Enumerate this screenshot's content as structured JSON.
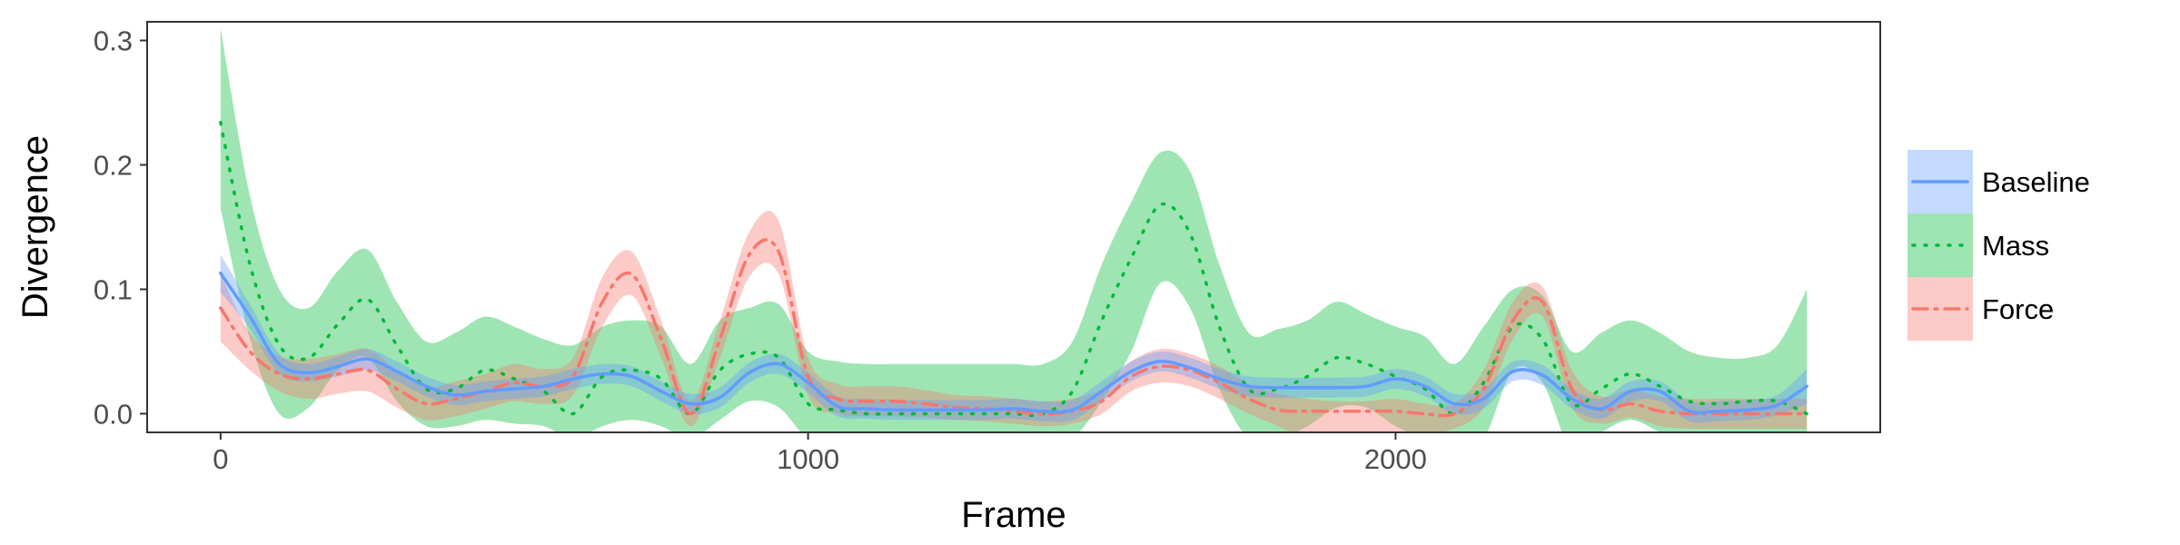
{
  "chart_data": {
    "type": "line",
    "title": "",
    "xlabel": "Frame",
    "ylabel": "Divergence",
    "xlim": [
      -125,
      2825
    ],
    "ylim": [
      -0.015,
      0.315
    ],
    "xticks": [
      0,
      1000,
      2000
    ],
    "xtick_labels": [
      "0",
      "1000",
      "2000"
    ],
    "yticks": [
      0,
      0.1,
      0.2,
      0.3
    ],
    "ytick_labels": [
      "0.0",
      "0.1",
      "0.2",
      "0.3"
    ],
    "grid": false,
    "legend_position": "right",
    "series": [
      {
        "name": "Baseline",
        "color": "#619cff",
        "linestyle": "solid",
        "x": [
          0,
          50,
          100,
          150,
          200,
          250,
          300,
          350,
          400,
          450,
          500,
          550,
          600,
          650,
          700,
          750,
          800,
          850,
          900,
          950,
          1000,
          1050,
          1100,
          1150,
          1200,
          1250,
          1300,
          1350,
          1400,
          1450,
          1500,
          1550,
          1600,
          1650,
          1700,
          1750,
          1800,
          1850,
          1900,
          1950,
          2000,
          2050,
          2100,
          2150,
          2200,
          2250,
          2300,
          2350,
          2400,
          2450,
          2500,
          2550,
          2600,
          2650,
          2700
        ],
        "y": [
          0.113,
          0.078,
          0.04,
          0.033,
          0.038,
          0.044,
          0.034,
          0.022,
          0.015,
          0.018,
          0.02,
          0.022,
          0.028,
          0.032,
          0.03,
          0.018,
          0.008,
          0.013,
          0.033,
          0.04,
          0.025,
          0.006,
          0.004,
          0.003,
          0.003,
          0.003,
          0.003,
          0.004,
          0.002,
          0.003,
          0.018,
          0.034,
          0.042,
          0.037,
          0.028,
          0.022,
          0.021,
          0.021,
          0.021,
          0.022,
          0.028,
          0.022,
          0.008,
          0.012,
          0.034,
          0.031,
          0.012,
          0.004,
          0.018,
          0.018,
          0.002,
          0.002,
          0.003,
          0.007,
          0.022
        ],
        "lower": [
          0.098,
          0.068,
          0.032,
          0.026,
          0.03,
          0.035,
          0.026,
          0.014,
          0.007,
          0.01,
          0.012,
          0.014,
          0.02,
          0.024,
          0.022,
          0.01,
          0.0,
          0.005,
          0.025,
          0.032,
          0.017,
          -0.002,
          -0.004,
          -0.005,
          -0.005,
          -0.005,
          -0.005,
          -0.004,
          -0.006,
          -0.005,
          0.01,
          0.026,
          0.034,
          0.029,
          0.02,
          0.014,
          0.013,
          0.013,
          0.013,
          0.014,
          0.02,
          0.014,
          0.0,
          0.004,
          0.026,
          0.023,
          0.004,
          -0.004,
          0.01,
          0.01,
          -0.006,
          -0.006,
          -0.005,
          -0.001,
          0.008
        ],
        "upper": [
          0.128,
          0.088,
          0.048,
          0.04,
          0.046,
          0.052,
          0.042,
          0.03,
          0.023,
          0.026,
          0.028,
          0.03,
          0.036,
          0.04,
          0.038,
          0.026,
          0.016,
          0.021,
          0.041,
          0.048,
          0.033,
          0.014,
          0.012,
          0.011,
          0.011,
          0.011,
          0.011,
          0.012,
          0.01,
          0.011,
          0.026,
          0.042,
          0.05,
          0.045,
          0.036,
          0.03,
          0.029,
          0.029,
          0.029,
          0.03,
          0.036,
          0.03,
          0.016,
          0.02,
          0.042,
          0.039,
          0.02,
          0.012,
          0.026,
          0.026,
          0.01,
          0.01,
          0.011,
          0.015,
          0.036
        ]
      },
      {
        "name": "Mass",
        "color": "#00ba38",
        "linestyle": "dotted",
        "x": [
          0,
          50,
          100,
          150,
          200,
          250,
          300,
          350,
          400,
          450,
          500,
          550,
          600,
          650,
          700,
          750,
          800,
          850,
          900,
          950,
          1000,
          1050,
          1100,
          1150,
          1200,
          1250,
          1300,
          1350,
          1400,
          1450,
          1500,
          1550,
          1600,
          1650,
          1700,
          1750,
          1800,
          1850,
          1900,
          1950,
          2000,
          2050,
          2100,
          2150,
          2200,
          2250,
          2300,
          2350,
          2400,
          2450,
          2500,
          2550,
          2600,
          2650,
          2700
        ],
        "y": [
          0.234,
          0.12,
          0.055,
          0.045,
          0.072,
          0.092,
          0.055,
          0.02,
          0.02,
          0.035,
          0.028,
          0.018,
          0.0,
          0.03,
          0.035,
          0.028,
          0.0,
          0.035,
          0.048,
          0.045,
          0.008,
          0.003,
          0.0,
          0.0,
          0.0,
          0.0,
          0.0,
          0.0,
          0.0,
          0.018,
          0.075,
          0.125,
          0.168,
          0.145,
          0.07,
          0.02,
          0.02,
          0.03,
          0.045,
          0.04,
          0.03,
          0.02,
          0.0,
          0.025,
          0.07,
          0.06,
          0.008,
          0.02,
          0.032,
          0.022,
          0.01,
          0.008,
          0.01,
          0.01,
          0.0
        ],
        "lower": [
          0.165,
          0.06,
          0.0,
          0.005,
          0.035,
          0.045,
          0.01,
          -0.01,
          -0.01,
          -0.005,
          -0.008,
          -0.01,
          -0.02,
          -0.01,
          -0.005,
          -0.01,
          -0.02,
          -0.005,
          0.01,
          0.005,
          -0.02,
          -0.025,
          -0.025,
          -0.025,
          -0.025,
          -0.025,
          -0.025,
          -0.025,
          -0.025,
          -0.02,
          0.01,
          0.05,
          0.105,
          0.085,
          0.02,
          -0.02,
          -0.02,
          -0.01,
          0.005,
          0.005,
          -0.01,
          -0.02,
          -0.03,
          -0.02,
          0.035,
          0.025,
          -0.03,
          -0.015,
          -0.005,
          -0.015,
          -0.025,
          -0.025,
          -0.025,
          -0.025,
          -0.02
        ],
        "upper": [
          0.31,
          0.175,
          0.1,
          0.085,
          0.115,
          0.132,
          0.09,
          0.058,
          0.065,
          0.078,
          0.07,
          0.06,
          0.055,
          0.07,
          0.075,
          0.07,
          0.04,
          0.075,
          0.085,
          0.088,
          0.05,
          0.042,
          0.04,
          0.04,
          0.04,
          0.04,
          0.04,
          0.04,
          0.04,
          0.058,
          0.12,
          0.17,
          0.21,
          0.195,
          0.12,
          0.065,
          0.068,
          0.075,
          0.09,
          0.08,
          0.07,
          0.062,
          0.04,
          0.07,
          0.1,
          0.095,
          0.05,
          0.065,
          0.075,
          0.065,
          0.05,
          0.045,
          0.045,
          0.055,
          0.1
        ]
      },
      {
        "name": "Force",
        "color": "#f8766d",
        "linestyle": "dashdot",
        "x": [
          0,
          50,
          100,
          150,
          200,
          250,
          300,
          350,
          400,
          450,
          500,
          550,
          600,
          650,
          700,
          750,
          800,
          850,
          900,
          950,
          1000,
          1050,
          1100,
          1150,
          1200,
          1250,
          1300,
          1350,
          1400,
          1450,
          1500,
          1550,
          1600,
          1650,
          1700,
          1750,
          1800,
          1850,
          1900,
          1950,
          2000,
          2050,
          2100,
          2150,
          2200,
          2250,
          2300,
          2350,
          2400,
          2450,
          2500,
          2550,
          2600,
          2650,
          2700
        ],
        "y": [
          0.085,
          0.05,
          0.032,
          0.028,
          0.032,
          0.035,
          0.02,
          0.008,
          0.012,
          0.018,
          0.025,
          0.022,
          0.03,
          0.09,
          0.112,
          0.06,
          0.0,
          0.06,
          0.128,
          0.13,
          0.03,
          0.012,
          0.01,
          0.01,
          0.008,
          0.005,
          0.004,
          0.002,
          0.0,
          0.002,
          0.01,
          0.03,
          0.038,
          0.035,
          0.025,
          0.012,
          0.003,
          0.002,
          0.002,
          0.002,
          0.002,
          0.0,
          0.0,
          0.02,
          0.075,
          0.09,
          0.02,
          0.003,
          0.008,
          0.002,
          0.0,
          0.0,
          0.0,
          0.0,
          0.0
        ],
        "lower": [
          0.058,
          0.035,
          0.018,
          0.012,
          0.016,
          0.018,
          0.005,
          -0.005,
          -0.002,
          0.004,
          0.01,
          0.008,
          0.015,
          0.07,
          0.095,
          0.045,
          -0.01,
          0.045,
          0.11,
          0.112,
          0.015,
          0.0,
          -0.002,
          -0.002,
          -0.003,
          -0.005,
          -0.006,
          -0.008,
          -0.01,
          -0.008,
          0.0,
          0.018,
          0.025,
          0.022,
          0.012,
          0.0,
          -0.01,
          -0.02,
          -0.025,
          -0.025,
          -0.02,
          -0.015,
          -0.012,
          0.005,
          0.06,
          0.078,
          0.005,
          -0.008,
          -0.003,
          -0.01,
          -0.012,
          -0.012,
          -0.012,
          -0.012,
          -0.012
        ],
        "upper": [
          0.112,
          0.065,
          0.046,
          0.044,
          0.048,
          0.052,
          0.035,
          0.021,
          0.026,
          0.032,
          0.04,
          0.036,
          0.045,
          0.11,
          0.13,
          0.075,
          0.01,
          0.075,
          0.146,
          0.155,
          0.045,
          0.024,
          0.022,
          0.022,
          0.019,
          0.015,
          0.014,
          0.012,
          0.01,
          0.012,
          0.02,
          0.042,
          0.052,
          0.048,
          0.038,
          0.024,
          0.016,
          0.012,
          0.01,
          0.01,
          0.012,
          0.008,
          0.008,
          0.035,
          0.09,
          0.102,
          0.035,
          0.014,
          0.019,
          0.014,
          0.012,
          0.012,
          0.012,
          0.012,
          0.012
        ]
      }
    ]
  }
}
